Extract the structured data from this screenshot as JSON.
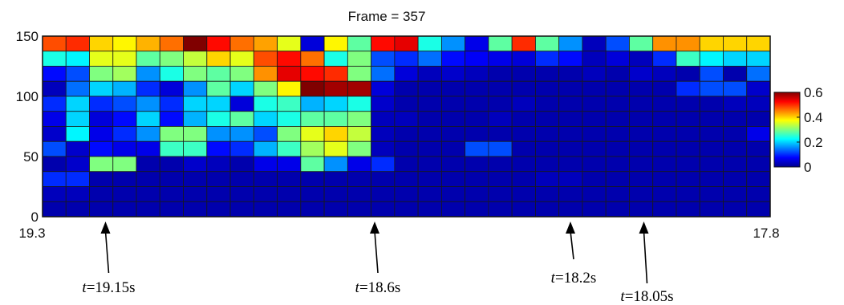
{
  "chart_data": {
    "type": "heatmap",
    "title": "Frame = 357",
    "x_range": [
      19.3,
      17.8
    ],
    "x_tick_labels": [
      "19.3",
      "17.8"
    ],
    "ylim": [
      0,
      150
    ],
    "y_ticks": [
      0,
      50,
      100,
      150
    ],
    "n_cols": 31,
    "n_rows": 12,
    "colorbar": {
      "min": 0,
      "max": 0.6,
      "ticks": [
        0,
        0.2,
        0.4,
        0.6
      ],
      "tick_labels": [
        "0",
        "0.2",
        "0.4",
        "0.6"
      ]
    },
    "colormap": [
      "#00008f",
      "#0000ff",
      "#0080ff",
      "#00ffff",
      "#80ff80",
      "#ffff00",
      "#ff8000",
      "#ff0000",
      "#800000"
    ],
    "grid_line_color": "#1a1a1a",
    "values_rows_top_to_bottom": [
      [
        0.48,
        0.5,
        0.4,
        0.38,
        0.42,
        0.46,
        0.6,
        0.52,
        0.46,
        0.43,
        0.36,
        0.05,
        0.38,
        0.28,
        0.52,
        0.54,
        0.24,
        0.16,
        0.06,
        0.28,
        0.5,
        0.28,
        0.16,
        0.03,
        0.12,
        0.28,
        0.44,
        0.44,
        0.4,
        0.4,
        0.4
      ],
      [
        0.24,
        0.22,
        0.36,
        0.36,
        0.28,
        0.3,
        0.34,
        0.4,
        0.36,
        0.48,
        0.52,
        0.46,
        0.24,
        0.3,
        0.12,
        0.1,
        0.14,
        0.08,
        0.07,
        0.06,
        0.05,
        0.1,
        0.08,
        0.03,
        0.05,
        0.03,
        0.1,
        0.26,
        0.22,
        0.2,
        0.2
      ],
      [
        0.08,
        0.12,
        0.3,
        0.32,
        0.16,
        0.24,
        0.3,
        0.28,
        0.3,
        0.44,
        0.54,
        0.52,
        0.5,
        0.3,
        0.14,
        0.05,
        0.03,
        0.04,
        0.03,
        0.02,
        0.02,
        0.02,
        0.02,
        0.03,
        0.02,
        0.04,
        0.03,
        0.02,
        0.12,
        0.02,
        0.14
      ],
      [
        0.03,
        0.14,
        0.2,
        0.18,
        0.1,
        0.05,
        0.16,
        0.28,
        0.2,
        0.3,
        0.38,
        0.6,
        0.58,
        0.58,
        0.05,
        0.02,
        0.02,
        0.02,
        0.02,
        0.02,
        0.02,
        0.02,
        0.02,
        0.02,
        0.02,
        0.02,
        0.02,
        0.1,
        0.12,
        0.12,
        0.04
      ],
      [
        0.1,
        0.2,
        0.1,
        0.12,
        0.16,
        0.1,
        0.2,
        0.2,
        0.05,
        0.24,
        0.26,
        0.18,
        0.2,
        0.24,
        0.04,
        0.02,
        0.02,
        0.02,
        0.02,
        0.02,
        0.03,
        0.02,
        0.02,
        0.02,
        0.02,
        0.02,
        0.02,
        0.02,
        0.02,
        0.03,
        0.03
      ],
      [
        0.06,
        0.2,
        0.05,
        0.08,
        0.2,
        0.08,
        0.18,
        0.24,
        0.28,
        0.2,
        0.24,
        0.28,
        0.28,
        0.3,
        0.03,
        0.03,
        0.02,
        0.02,
        0.02,
        0.03,
        0.02,
        0.02,
        0.02,
        0.02,
        0.02,
        0.02,
        0.02,
        0.02,
        0.02,
        0.02,
        0.02
      ],
      [
        0.04,
        0.22,
        0.06,
        0.1,
        0.16,
        0.3,
        0.3,
        0.16,
        0.16,
        0.12,
        0.3,
        0.36,
        0.4,
        0.34,
        0.03,
        0.02,
        0.02,
        0.02,
        0.02,
        0.02,
        0.02,
        0.02,
        0.02,
        0.02,
        0.02,
        0.02,
        0.02,
        0.02,
        0.02,
        0.02,
        0.06
      ],
      [
        0.12,
        0.04,
        0.08,
        0.06,
        0.06,
        0.26,
        0.26,
        0.08,
        0.1,
        0.18,
        0.26,
        0.32,
        0.36,
        0.3,
        0.03,
        0.02,
        0.02,
        0.02,
        0.12,
        0.12,
        0.02,
        0.02,
        0.02,
        0.02,
        0.02,
        0.02,
        0.02,
        0.02,
        0.02,
        0.02,
        0.02
      ],
      [
        0.02,
        0.04,
        0.3,
        0.3,
        0.02,
        0.02,
        0.04,
        0.03,
        0.02,
        0.06,
        0.06,
        0.28,
        0.16,
        0.06,
        0.1,
        0.02,
        0.02,
        0.02,
        0.02,
        0.02,
        0.02,
        0.02,
        0.02,
        0.02,
        0.02,
        0.02,
        0.02,
        0.02,
        0.02,
        0.02,
        0.02
      ],
      [
        0.1,
        0.1,
        0.02,
        0.02,
        0.02,
        0.02,
        0.02,
        0.02,
        0.02,
        0.02,
        0.02,
        0.02,
        0.02,
        0.02,
        0.02,
        0.02,
        0.02,
        0.02,
        0.02,
        0.02,
        0.02,
        0.03,
        0.03,
        0.02,
        0.02,
        0.02,
        0.02,
        0.02,
        0.02,
        0.02,
        0.02
      ],
      [
        0.03,
        0.03,
        0.02,
        0.02,
        0.02,
        0.02,
        0.02,
        0.02,
        0.02,
        0.02,
        0.02,
        0.02,
        0.02,
        0.02,
        0.02,
        0.02,
        0.02,
        0.02,
        0.02,
        0.02,
        0.02,
        0.02,
        0.02,
        0.02,
        0.02,
        0.02,
        0.02,
        0.02,
        0.02,
        0.02,
        0.02
      ],
      [
        0.02,
        0.02,
        0.02,
        0.02,
        0.02,
        0.02,
        0.02,
        0.02,
        0.02,
        0.02,
        0.02,
        0.02,
        0.02,
        0.02,
        0.02,
        0.02,
        0.02,
        0.02,
        0.02,
        0.02,
        0.02,
        0.02,
        0.02,
        0.02,
        0.02,
        0.02,
        0.02,
        0.02,
        0.02,
        0.02,
        0.02
      ]
    ],
    "annotations": [
      {
        "prefix": "t",
        "value": "=19.15s",
        "time": 19.15
      },
      {
        "prefix": "t",
        "value": "=18.6s",
        "time": 18.6
      },
      {
        "prefix": "t",
        "value": "=18.2s",
        "time": 18.2
      },
      {
        "prefix": "t",
        "value": "=18.05s",
        "time": 18.05
      }
    ]
  }
}
